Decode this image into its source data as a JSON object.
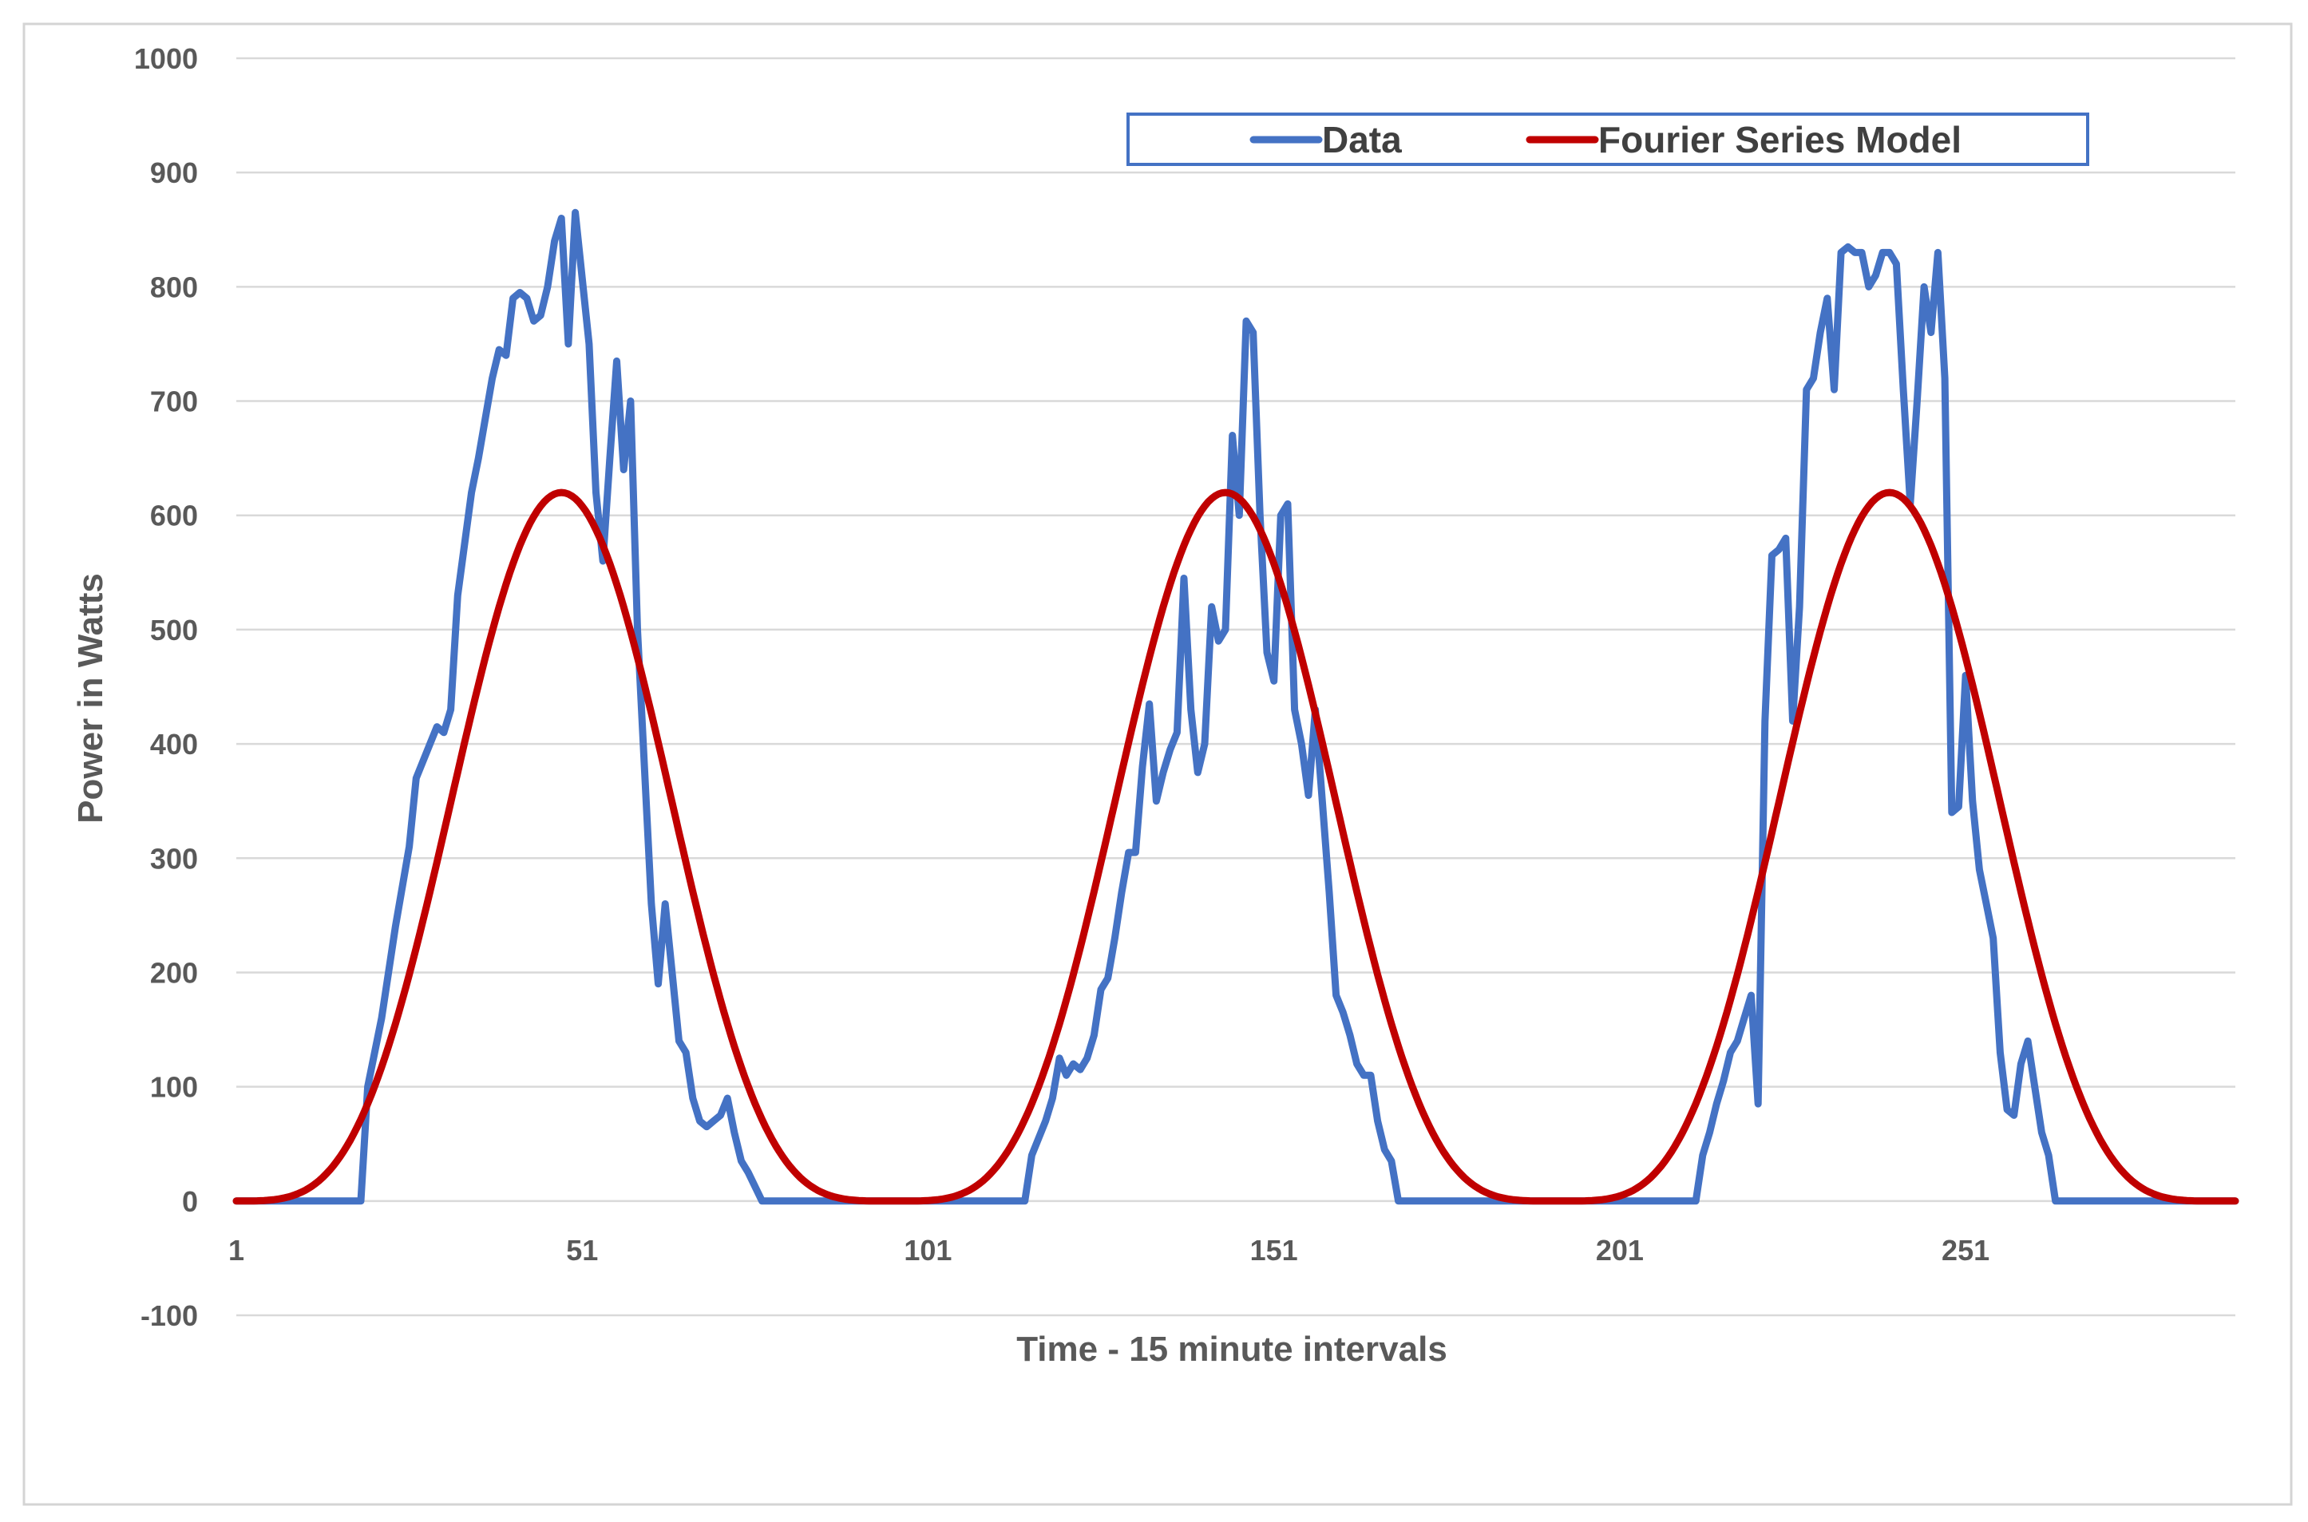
{
  "chart_data": {
    "type": "line",
    "title": "",
    "xlabel": "Time - 15 minute intervals",
    "ylabel": "Power in Watts",
    "xlim": [
      1,
      290
    ],
    "ylim": [
      -100,
      1000
    ],
    "y_ticks": [
      1000,
      900,
      800,
      700,
      600,
      500,
      400,
      300,
      200,
      100,
      0,
      -100
    ],
    "x_ticks": [
      1,
      51,
      101,
      151,
      201,
      251
    ],
    "grid": true,
    "legend_position": "top-right",
    "series": [
      {
        "name": "Data",
        "color": "#4472c4",
        "points": [
          [
            1,
            0
          ],
          [
            10,
            0
          ],
          [
            19,
            0
          ],
          [
            20,
            100
          ],
          [
            22,
            160
          ],
          [
            24,
            240
          ],
          [
            26,
            310
          ],
          [
            27,
            370
          ],
          [
            29,
            400
          ],
          [
            30,
            415
          ],
          [
            31,
            410
          ],
          [
            32,
            430
          ],
          [
            33,
            530
          ],
          [
            35,
            620
          ],
          [
            36,
            650
          ],
          [
            38,
            720
          ],
          [
            39,
            745
          ],
          [
            40,
            740
          ],
          [
            41,
            790
          ],
          [
            42,
            795
          ],
          [
            43,
            790
          ],
          [
            44,
            770
          ],
          [
            45,
            775
          ],
          [
            46,
            800
          ],
          [
            47,
            840
          ],
          [
            48,
            860
          ],
          [
            49,
            750
          ],
          [
            50,
            865
          ],
          [
            52,
            750
          ],
          [
            53,
            620
          ],
          [
            54,
            560
          ],
          [
            55,
            650
          ],
          [
            56,
            735
          ],
          [
            57,
            640
          ],
          [
            58,
            700
          ],
          [
            59,
            500
          ],
          [
            60,
            380
          ],
          [
            61,
            260
          ],
          [
            62,
            190
          ],
          [
            63,
            260
          ],
          [
            64,
            200
          ],
          [
            65,
            140
          ],
          [
            66,
            130
          ],
          [
            67,
            90
          ],
          [
            68,
            70
          ],
          [
            69,
            65
          ],
          [
            70,
            70
          ],
          [
            71,
            75
          ],
          [
            72,
            90
          ],
          [
            73,
            60
          ],
          [
            74,
            35
          ],
          [
            75,
            25
          ],
          [
            77,
            0
          ],
          [
            115,
            0
          ],
          [
            116,
            40
          ],
          [
            118,
            70
          ],
          [
            119,
            90
          ],
          [
            120,
            125
          ],
          [
            121,
            110
          ],
          [
            122,
            120
          ],
          [
            123,
            115
          ],
          [
            124,
            125
          ],
          [
            125,
            145
          ],
          [
            126,
            185
          ],
          [
            127,
            195
          ],
          [
            128,
            230
          ],
          [
            129,
            270
          ],
          [
            130,
            305
          ],
          [
            131,
            305
          ],
          [
            132,
            380
          ],
          [
            133,
            435
          ],
          [
            134,
            350
          ],
          [
            135,
            375
          ],
          [
            136,
            395
          ],
          [
            137,
            410
          ],
          [
            138,
            545
          ],
          [
            139,
            430
          ],
          [
            140,
            375
          ],
          [
            141,
            400
          ],
          [
            142,
            520
          ],
          [
            143,
            490
          ],
          [
            144,
            500
          ],
          [
            145,
            670
          ],
          [
            146,
            600
          ],
          [
            147,
            770
          ],
          [
            148,
            760
          ],
          [
            149,
            600
          ],
          [
            150,
            480
          ],
          [
            151,
            455
          ],
          [
            152,
            600
          ],
          [
            153,
            610
          ],
          [
            154,
            430
          ],
          [
            155,
            400
          ],
          [
            156,
            355
          ],
          [
            157,
            430
          ],
          [
            158,
            350
          ],
          [
            159,
            270
          ],
          [
            160,
            180
          ],
          [
            161,
            165
          ],
          [
            162,
            145
          ],
          [
            163,
            120
          ],
          [
            164,
            110
          ],
          [
            165,
            110
          ],
          [
            166,
            70
          ],
          [
            167,
            45
          ],
          [
            168,
            35
          ],
          [
            169,
            0
          ],
          [
            212,
            0
          ],
          [
            213,
            40
          ],
          [
            214,
            60
          ],
          [
            215,
            85
          ],
          [
            216,
            105
          ],
          [
            217,
            130
          ],
          [
            218,
            140
          ],
          [
            219,
            160
          ],
          [
            220,
            180
          ],
          [
            221,
            85
          ],
          [
            222,
            420
          ],
          [
            223,
            565
          ],
          [
            224,
            570
          ],
          [
            225,
            580
          ],
          [
            226,
            420
          ],
          [
            227,
            520
          ],
          [
            228,
            710
          ],
          [
            229,
            720
          ],
          [
            230,
            760
          ],
          [
            231,
            790
          ],
          [
            232,
            710
          ],
          [
            233,
            830
          ],
          [
            234,
            835
          ],
          [
            235,
            830
          ],
          [
            236,
            830
          ],
          [
            237,
            800
          ],
          [
            238,
            810
          ],
          [
            239,
            830
          ],
          [
            240,
            830
          ],
          [
            241,
            820
          ],
          [
            242,
            710
          ],
          [
            243,
            610
          ],
          [
            244,
            700
          ],
          [
            245,
            800
          ],
          [
            246,
            760
          ],
          [
            247,
            830
          ],
          [
            248,
            720
          ],
          [
            249,
            340
          ],
          [
            250,
            345
          ],
          [
            251,
            460
          ],
          [
            252,
            350
          ],
          [
            253,
            290
          ],
          [
            254,
            260
          ],
          [
            255,
            230
          ],
          [
            256,
            130
          ],
          [
            257,
            80
          ],
          [
            258,
            75
          ],
          [
            259,
            120
          ],
          [
            260,
            140
          ],
          [
            261,
            100
          ],
          [
            262,
            60
          ],
          [
            263,
            40
          ],
          [
            264,
            0
          ],
          [
            290,
            0
          ]
        ]
      },
      {
        "name": "Fourier Series Model",
        "color": "#c00000",
        "model": "sin4",
        "amplitude": 620,
        "period": 96,
        "peaks": [
          48,
          144,
          240
        ],
        "baseline": 0
      }
    ]
  }
}
